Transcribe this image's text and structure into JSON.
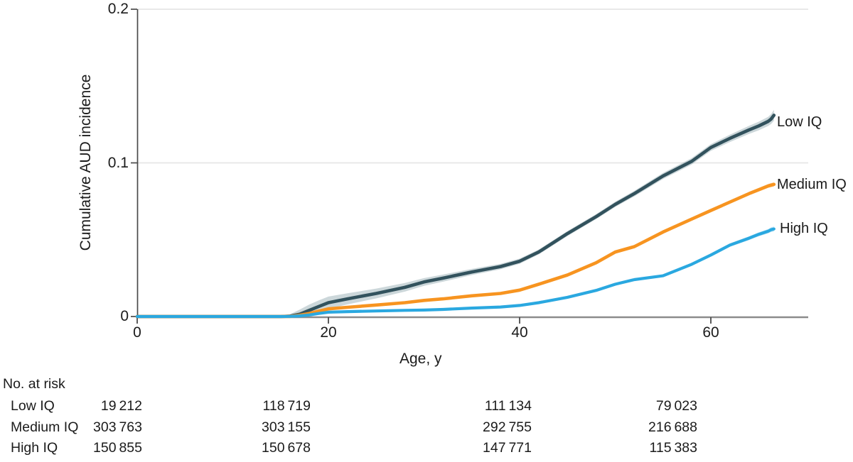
{
  "chart_data": {
    "type": "line",
    "title": "",
    "xlabel": "Age, y",
    "ylabel": "Cumulative AUD incidence",
    "xlim": [
      0,
      70.2
    ],
    "ylim": [
      0,
      0.2
    ],
    "x_ticks": [
      0,
      20,
      40,
      60
    ],
    "x_tick_labels": [
      "0",
      "20",
      "40",
      "60"
    ],
    "y_ticks": [
      0,
      0.1,
      0.2
    ],
    "y_tick_labels": [
      "0",
      "0.1",
      "0.2"
    ],
    "grid": "horizontal gridlines at 0.1 and 0.2",
    "legend_position": "direct labels at right end of each curve",
    "x": [
      0,
      5,
      10,
      15,
      16,
      17,
      18,
      19,
      20,
      22,
      25,
      28,
      30,
      32,
      35,
      38,
      40,
      42,
      45,
      48,
      50,
      52,
      55,
      58,
      60,
      62,
      64,
      65,
      66,
      66.3,
      66.6
    ],
    "series": [
      {
        "name": "Low IQ",
        "color": "#32525d",
        "ci_color": "#8fa6ad",
        "ci_opacity": 0.45,
        "width": 4.6,
        "y": [
          0,
          0,
          0,
          0,
          0.0003,
          0.0015,
          0.004,
          0.0065,
          0.009,
          0.0115,
          0.015,
          0.019,
          0.0225,
          0.025,
          0.029,
          0.0325,
          0.036,
          0.042,
          0.054,
          0.065,
          0.073,
          0.08,
          0.0915,
          0.101,
          0.11,
          0.116,
          0.1215,
          0.124,
          0.127,
          0.1285,
          0.131
        ],
        "ci": [
          0,
          0,
          0,
          0,
          0.0012,
          0.003,
          0.0038,
          0.004,
          0.004,
          0.0036,
          0.0032,
          0.0028,
          0.0025,
          0.0023,
          0.002,
          0.0018,
          0.0017,
          0.0016,
          0.0016,
          0.0016,
          0.0017,
          0.0018,
          0.002,
          0.0021,
          0.0022,
          0.0024,
          0.0026,
          0.0028,
          0.003,
          0.0032,
          0.0035
        ]
      },
      {
        "name": "Medium IQ",
        "color": "#f79420",
        "ci_color": "#f79420",
        "ci_opacity": 0.3,
        "width": 4.6,
        "y": [
          0,
          0,
          0,
          0,
          0.0001,
          0.0008,
          0.002,
          0.0035,
          0.005,
          0.006,
          0.0075,
          0.009,
          0.0105,
          0.0115,
          0.0135,
          0.015,
          0.0172,
          0.021,
          0.027,
          0.035,
          0.042,
          0.0455,
          0.055,
          0.0634,
          0.069,
          0.0745,
          0.08,
          0.0825,
          0.085,
          0.0855,
          0.086
        ],
        "ci": [
          0,
          0,
          0,
          0,
          0.0001,
          0.0003,
          0.0004,
          0.0005,
          0.0005,
          0.0005,
          0.0005,
          0.0005,
          0.0005,
          0.0005,
          0.0005,
          0.0005,
          0.0005,
          0.0006,
          0.0006,
          0.0006,
          0.0007,
          0.0007,
          0.0008,
          0.0008,
          0.0009,
          0.001,
          0.0011,
          0.0012,
          0.0013,
          0.0014,
          0.0015
        ]
      },
      {
        "name": "High IQ",
        "color": "#2aa8e0",
        "ci_color": "#2aa8e0",
        "ci_opacity": 0.3,
        "width": 4.2,
        "y": [
          0,
          0,
          0,
          0,
          0.0001,
          0.0004,
          0.001,
          0.002,
          0.0028,
          0.0032,
          0.0036,
          0.004,
          0.0042,
          0.0046,
          0.0055,
          0.0062,
          0.0072,
          0.009,
          0.0125,
          0.017,
          0.021,
          0.024,
          0.0265,
          0.034,
          0.04,
          0.0465,
          0.051,
          0.0535,
          0.0555,
          0.0565,
          0.057
        ],
        "ci": [
          0,
          0,
          0,
          0,
          0.0001,
          0.0002,
          0.0003,
          0.0004,
          0.0004,
          0.0004,
          0.0004,
          0.0004,
          0.0004,
          0.0004,
          0.0004,
          0.0005,
          0.0005,
          0.0005,
          0.0006,
          0.0006,
          0.0007,
          0.0007,
          0.0008,
          0.0009,
          0.001,
          0.0011,
          0.0012,
          0.0013,
          0.0014,
          0.0015,
          0.0016
        ]
      }
    ]
  },
  "risk_table": {
    "title": "No. at risk",
    "tick_ages": [
      0,
      20,
      40,
      60
    ],
    "rows": [
      {
        "label": "Low IQ",
        "values": [
          "19 212",
          "118 719",
          "111 134",
          "79 023"
        ]
      },
      {
        "label": "Medium IQ",
        "values": [
          "303 763",
          "303 155",
          "292 755",
          "216 688"
        ]
      },
      {
        "label": "High IQ",
        "values": [
          "150 855",
          "150 678",
          "147 771",
          "115 383"
        ]
      }
    ]
  },
  "colors": {
    "axis_x": "#8c8c8c",
    "axis_y": "#4a4a4a",
    "tick": "#4a4a4a",
    "gridline": "#e8e8e8",
    "text": "#1b1b1b",
    "background": "#ffffff"
  }
}
